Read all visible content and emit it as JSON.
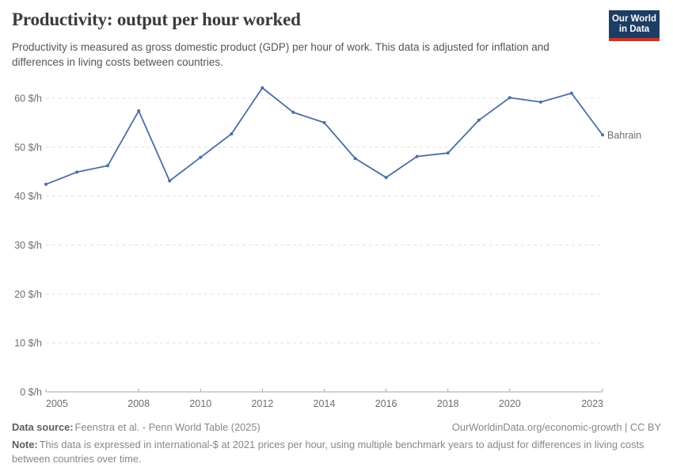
{
  "header": {
    "title": "Productivity: output per hour worked",
    "subtitle": "Productivity is measured as gross domestic product (GDP) per hour of work. This data is adjusted for inflation and differences in living costs between countries.",
    "logo": {
      "line1": "Our World",
      "line2": "in Data",
      "bg_color": "#1d3d63",
      "accent_color": "#c0392b"
    }
  },
  "chart_data": {
    "type": "line",
    "title": "Productivity: output per hour worked",
    "x": [
      2005,
      2006,
      2007,
      2008,
      2009,
      2010,
      2011,
      2012,
      2013,
      2014,
      2015,
      2016,
      2017,
      2018,
      2019,
      2020,
      2021,
      2022,
      2023
    ],
    "series": [
      {
        "name": "Bahrain",
        "color": "#4d6da4",
        "values": [
          42.4,
          44.9,
          46.2,
          57.4,
          43.1,
          47.9,
          52.7,
          62.1,
          57.1,
          55.0,
          47.7,
          43.8,
          48.1,
          48.8,
          55.5,
          60.1,
          59.2,
          61.0,
          52.5
        ]
      }
    ],
    "xlabel": "",
    "ylabel": "$/h",
    "xlim": [
      2005,
      2023
    ],
    "ylim": [
      0,
      63
    ],
    "x_ticks": [
      2005,
      2008,
      2010,
      2012,
      2014,
      2016,
      2018,
      2020,
      2023
    ],
    "y_ticks": [
      0,
      10,
      20,
      30,
      40,
      50,
      60
    ],
    "y_tick_suffix": " $/h",
    "grid": "horizontal-dashed",
    "legend": "label-at-line-end",
    "colors": {
      "line": "#4d6da4",
      "gridline": "#e0e0e0",
      "axis": "#a5a5a5",
      "tick_label": "#6e6e6e"
    }
  },
  "footer": {
    "datasource_label": "Data source:",
    "datasource_text": "Feenstra et al. - Penn World Table (2025)",
    "link_text": "OurWorldinData.org/economic-growth | CC BY",
    "note_label": "Note:",
    "note_text": "This data is expressed in international-$ at 2021 prices per hour, using multiple benchmark years to adjust for differences in living costs between countries over time."
  }
}
